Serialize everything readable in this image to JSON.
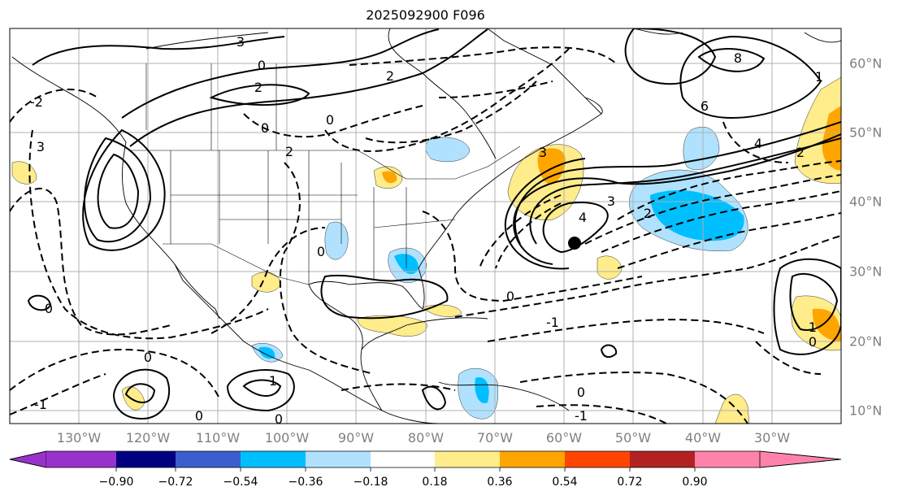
{
  "title": "2025092900 F096",
  "lon_labels": [
    "130°W",
    "120°W",
    "110°W",
    "100°W",
    "90°W",
    "80°W",
    "70°W",
    "60°W",
    "50°W",
    "40°W",
    "30°W"
  ],
  "lat_labels": [
    "60°N",
    "50°N",
    "40°N",
    "30°N",
    "20°N",
    "10°N"
  ],
  "colorbar": {
    "ticks": [
      "−0.90",
      "−0.72",
      "−0.54",
      "−0.36",
      "−0.18",
      "0.18",
      "0.36",
      "0.54",
      "0.72",
      "0.90"
    ],
    "colors": [
      "#9932cc",
      "#000080",
      "#3a5fcd",
      "#00bfff",
      "#b0e2ff",
      "#ffffff",
      "#ffec8b",
      "#ffa500",
      "#ff4500",
      "#b22222",
      "#ff82ab"
    ]
  },
  "contour_labels": [
    "3",
    "0",
    "2",
    "2",
    "0",
    "0",
    "2",
    "8",
    "6",
    "4",
    "4",
    "3",
    "2",
    "2",
    "3",
    "-1",
    "0",
    "0",
    "1",
    "0",
    "0",
    "-1",
    "0",
    "-1",
    "0",
    "0",
    "1",
    "1",
    "0",
    "-2",
    "3"
  ]
}
